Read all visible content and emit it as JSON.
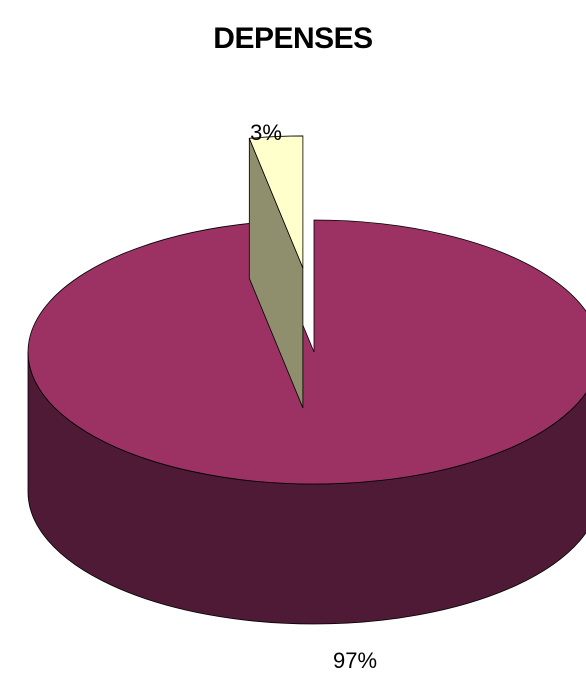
{
  "chart_data": {
    "type": "pie",
    "title": "DEPENSES",
    "slices": [
      {
        "label": "97%",
        "value": 97,
        "color": "#9b3263",
        "side_color": "#4f1a35",
        "exploded": false
      },
      {
        "label": "3%",
        "value": 3,
        "color": "#ffffcc",
        "side_color": "#8f8f6d",
        "exploded": true
      }
    ],
    "style": "3d-exploded",
    "legend": "none"
  }
}
